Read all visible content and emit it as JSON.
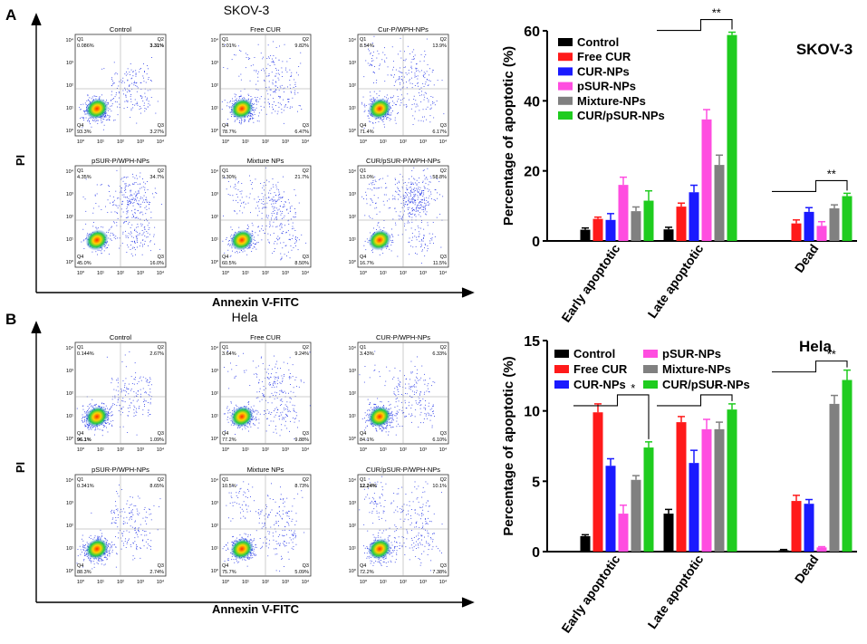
{
  "panels": [
    {
      "letter": "A",
      "cell_line": "SKOV-3",
      "y_axis_label": "PI",
      "x_axis_label": "Annexin V-FITC",
      "flow_plots": [
        {
          "title": "Control",
          "q1": "0.086%",
          "q2": "3.31%",
          "q3": "3.27%",
          "q4": "93.3%",
          "q2_bold": true
        },
        {
          "title": "Free CUR",
          "q1": "5.01%",
          "q2": "9.82%",
          "q3": "6.47%",
          "q4": "78.7%"
        },
        {
          "title": "Cur-P/WPH-NPs",
          "q1": "8.54%",
          "q2": "13.9%",
          "q3": "6.17%",
          "q4": "71.4%"
        },
        {
          "title": "pSUR-P/WPH-NPs",
          "q1": "4.35%",
          "q2": "34.7%",
          "q3": "16.0%",
          "q4": "45.0%"
        },
        {
          "title": "Mixture NPs",
          "q1": "9.30%",
          "q2": "21.7%",
          "q3": "8.50%",
          "q4": "60.5%"
        },
        {
          "title": "CUR/pSUR-P/WPH-NPs",
          "q1": "13.0%",
          "q2": "58.8%",
          "q3": "11.5%",
          "q4": "16.7%"
        }
      ]
    },
    {
      "letter": "B",
      "cell_line": "Hela",
      "y_axis_label": "PI",
      "x_axis_label": "Annexin V-FITC",
      "flow_plots": [
        {
          "title": "Control",
          "q1": "0.144%",
          "q2": "2.67%",
          "q3": "1.09%",
          "q4": "96.1%",
          "q4_bold": true
        },
        {
          "title": "Free CUR",
          "q1": "3.64%",
          "q2": "9.24%",
          "q3": "9.88%",
          "q4": "77.2%"
        },
        {
          "title": "CUR-P/WPH-NPs",
          "q1": "3.43%",
          "q2": "6.33%",
          "q3": "6.10%",
          "q4": "84.1%"
        },
        {
          "title": "pSUR-P/WPH-NPs",
          "q1": "0.341%",
          "q2": "8.65%",
          "q3": "2.74%",
          "q4": "88.3%"
        },
        {
          "title": "Mixture NPs",
          "q1": "10.5%",
          "q2": "8.73%",
          "q3": "5.09%",
          "q4": "75.7%"
        },
        {
          "title": "CUR/pSUR-P/WPH-NPs",
          "q1": "12.24%",
          "q2": "10.1%",
          "q3": "7.38%",
          "q4": "72.2%",
          "q1_bold": true
        }
      ]
    }
  ],
  "flow_tick_labels": [
    "10⁰",
    "10¹",
    "10²",
    "10³",
    "10⁴"
  ],
  "quadrant_labels": [
    "Q1",
    "Q2",
    "Q3",
    "Q4"
  ],
  "colors": {
    "Control": "#000000",
    "Free CUR": "#ff1a1a",
    "CUR-NPs": "#1a1aff",
    "pSUR-NPs": "#ff4de0",
    "Mixture-NPs": "#808080",
    "CUR/pSUR-NPs": "#1fcc1f"
  },
  "chart_data": [
    {
      "type": "bar",
      "title": "SKOV-3",
      "ylabel": "Percentage of apoptotic (%)",
      "xlabel": "",
      "ylim": [
        0,
        60
      ],
      "yticks": [
        0,
        20,
        40,
        60
      ],
      "categories": [
        "Early apoptotic",
        "Late apoptotic",
        "Dead"
      ],
      "legend_position": "top-left",
      "series": [
        {
          "name": "Control",
          "values": [
            3.2,
            3.3,
            null
          ],
          "errors": [
            0.5,
            0.6,
            null
          ]
        },
        {
          "name": "Free CUR",
          "values": [
            6.3,
            9.8,
            5.0
          ],
          "errors": [
            0.5,
            1.0,
            1.0
          ]
        },
        {
          "name": "CUR-NPs",
          "values": [
            6.0,
            13.9,
            8.3
          ],
          "errors": [
            1.8,
            2.0,
            1.2
          ]
        },
        {
          "name": "pSUR-NPs",
          "values": [
            16.0,
            34.7,
            4.3
          ],
          "errors": [
            2.2,
            2.8,
            1.2
          ]
        },
        {
          "name": "Mixture-NPs",
          "values": [
            8.5,
            21.7,
            9.3
          ],
          "errors": [
            1.2,
            2.8,
            1.0
          ]
        },
        {
          "name": "CUR/pSUR-NPs",
          "values": [
            11.5,
            58.8,
            12.8
          ],
          "errors": [
            2.8,
            0.8,
            0.8
          ]
        }
      ],
      "significance": [
        {
          "label": "**",
          "category": "Late apoptotic"
        },
        {
          "label": "**",
          "category": "Dead"
        }
      ]
    },
    {
      "type": "bar",
      "title": "Hela",
      "ylabel": "Percentage of apoptotic (%)",
      "xlabel": "",
      "ylim": [
        0,
        15
      ],
      "yticks": [
        0,
        5,
        10,
        15
      ],
      "categories": [
        "Early apoptotic",
        "Late apoptotic",
        "Dead"
      ],
      "legend_position": "top-left",
      "series": [
        {
          "name": "Control",
          "values": [
            1.1,
            2.7,
            0.1
          ],
          "errors": [
            0.1,
            0.3,
            0.05
          ]
        },
        {
          "name": "Free CUR",
          "values": [
            9.9,
            9.2,
            3.6
          ],
          "errors": [
            0.6,
            0.4,
            0.4
          ]
        },
        {
          "name": "CUR-NPs",
          "values": [
            6.1,
            6.3,
            3.4
          ],
          "errors": [
            0.5,
            0.9,
            0.3
          ]
        },
        {
          "name": "pSUR-NPs",
          "values": [
            2.7,
            8.7,
            0.3
          ],
          "errors": [
            0.6,
            0.7,
            0.05
          ]
        },
        {
          "name": "Mixture-NPs",
          "values": [
            5.1,
            8.7,
            10.5
          ],
          "errors": [
            0.3,
            0.5,
            0.6
          ]
        },
        {
          "name": "CUR/pSUR-NPs",
          "values": [
            7.4,
            10.1,
            12.2
          ],
          "errors": [
            0.4,
            0.4,
            0.7
          ]
        }
      ],
      "significance": [
        {
          "label": "*",
          "category": "Early apoptotic"
        },
        {
          "label": "*",
          "category": "Late apoptotic"
        },
        {
          "label": "**",
          "category": "Dead"
        }
      ]
    }
  ]
}
